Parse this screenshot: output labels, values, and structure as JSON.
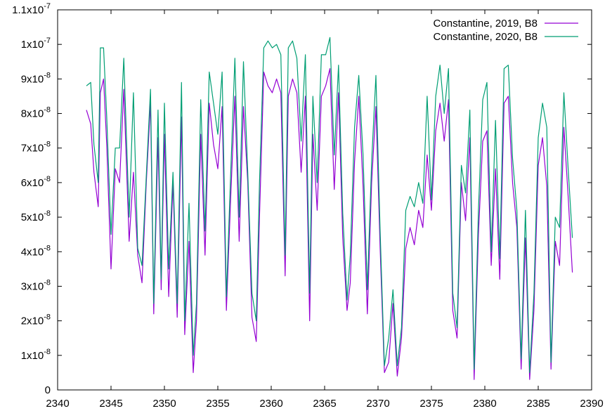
{
  "chart_data": {
    "type": "line",
    "title": "",
    "xlabel": "",
    "ylabel": "",
    "xlim": [
      2340,
      2390
    ],
    "ylim": [
      0,
      1.1e-07
    ],
    "grid": false,
    "legend_position": "top-right",
    "x_ticks": [
      {
        "value": 2340,
        "label": "2340"
      },
      {
        "value": 2345,
        "label": "2345"
      },
      {
        "value": 2350,
        "label": "2350"
      },
      {
        "value": 2355,
        "label": "2355"
      },
      {
        "value": 2360,
        "label": "2360"
      },
      {
        "value": 2365,
        "label": "2365"
      },
      {
        "value": 2370,
        "label": "2370"
      },
      {
        "value": 2375,
        "label": "2375"
      },
      {
        "value": 2380,
        "label": "2380"
      },
      {
        "value": 2385,
        "label": "2385"
      },
      {
        "value": 2390,
        "label": "2390"
      }
    ],
    "y_ticks": [
      {
        "value": 0,
        "mant": "0",
        "exp": ""
      },
      {
        "value": 1e-08,
        "mant": "1x10",
        "exp": "-8"
      },
      {
        "value": 2e-08,
        "mant": "2x10",
        "exp": "-8"
      },
      {
        "value": 3e-08,
        "mant": "3x10",
        "exp": "-8"
      },
      {
        "value": 4e-08,
        "mant": "4x10",
        "exp": "-8"
      },
      {
        "value": 5e-08,
        "mant": "5x10",
        "exp": "-8"
      },
      {
        "value": 6e-08,
        "mant": "6x10",
        "exp": "-8"
      },
      {
        "value": 7e-08,
        "mant": "7x10",
        "exp": "-8"
      },
      {
        "value": 8e-08,
        "mant": "8x10",
        "exp": "-8"
      },
      {
        "value": 9e-08,
        "mant": "9x10",
        "exp": "-8"
      },
      {
        "value": 1e-07,
        "mant": "1x10",
        "exp": "-7"
      },
      {
        "value": 1.1e-07,
        "mant": "1.1x10",
        "exp": "-7"
      }
    ],
    "series": [
      {
        "name": "Constantine, 2019, B8",
        "color": "#9400d3",
        "x": [
          2342.7,
          2343.1,
          2343.4,
          2343.8,
          2344.0,
          2344.3,
          2344.6,
          2345.0,
          2345.4,
          2345.8,
          2346.2,
          2346.7,
          2347.1,
          2347.5,
          2347.9,
          2348.3,
          2348.7,
          2349.0,
          2349.4,
          2349.7,
          2350.0,
          2350.4,
          2350.8,
          2351.2,
          2351.6,
          2351.9,
          2352.3,
          2352.7,
          2353.0,
          2353.4,
          2353.8,
          2354.2,
          2354.6,
          2355.0,
          2355.4,
          2355.8,
          2356.2,
          2356.6,
          2357.0,
          2357.4,
          2357.8,
          2358.2,
          2358.6,
          2358.9,
          2359.3,
          2359.7,
          2360.1,
          2360.5,
          2360.9,
          2361.3,
          2361.6,
          2362.0,
          2362.4,
          2362.8,
          2363.2,
          2363.6,
          2363.9,
          2364.3,
          2364.7,
          2365.1,
          2365.5,
          2365.9,
          2366.3,
          2366.7,
          2367.1,
          2367.4,
          2367.8,
          2368.2,
          2368.6,
          2369.0,
          2369.4,
          2369.8,
          2370.2,
          2370.6,
          2371.0,
          2371.4,
          2371.8,
          2372.2,
          2372.6,
          2373.0,
          2373.4,
          2373.8,
          2374.2,
          2374.6,
          2375.0,
          2375.4,
          2375.8,
          2376.2,
          2376.6,
          2377.0,
          2377.4,
          2377.8,
          2378.2,
          2378.6,
          2379.0,
          2379.4,
          2379.8,
          2380.2,
          2380.6,
          2381.0,
          2381.4,
          2381.8,
          2382.2,
          2382.6,
          2383.0,
          2383.4,
          2383.8,
          2384.2,
          2384.6,
          2385.0,
          2385.4,
          2385.8,
          2386.2,
          2386.6,
          2387.0,
          2387.4,
          2387.8,
          2388.2
        ],
        "y": [
          8.1e-08,
          7.7e-08,
          6.3e-08,
          5.3e-08,
          8.6e-08,
          9e-08,
          7.1e-08,
          3.5e-08,
          6.4e-08,
          6e-08,
          8.7e-08,
          4.3e-08,
          6.3e-08,
          3.9e-08,
          3.1e-08,
          6e-08,
          8.3e-08,
          2.2e-08,
          7.3e-08,
          2.9e-08,
          7.4e-08,
          2.7e-08,
          6e-08,
          2.1e-08,
          7.9e-08,
          1.6e-08,
          4.3e-08,
          5e-09,
          2e-08,
          7.4e-08,
          3.9e-08,
          8.3e-08,
          7.1e-08,
          6.4e-08,
          8.2e-08,
          2.3e-08,
          5.5e-08,
          8.5e-08,
          4.3e-08,
          8.2e-08,
          6e-08,
          2.1e-08,
          1.4e-08,
          5e-08,
          9.2e-08,
          8.8e-08,
          8.6e-08,
          9e-08,
          8.6e-08,
          3.3e-08,
          8.5e-08,
          9e-08,
          8.6e-08,
          6.3e-08,
          8.5e-08,
          2e-08,
          7.4e-08,
          5.2e-08,
          8.5e-08,
          8.8e-08,
          9.3e-08,
          5.8e-08,
          8.6e-08,
          4.4e-08,
          2.3e-08,
          3.1e-08,
          6.6e-08,
          8.5e-08,
          5.9e-08,
          2.2e-08,
          6e-08,
          8.2e-08,
          4.1e-08,
          5e-09,
          8e-09,
          2.5e-08,
          4e-09,
          1.5e-08,
          4.1e-08,
          4.7e-08,
          4.2e-08,
          5.2e-08,
          4.7e-08,
          6.8e-08,
          5.2e-08,
          7.5e-08,
          8.3e-08,
          7.2e-08,
          8.4e-08,
          2.3e-08,
          1.5e-08,
          6e-08,
          4.9e-08,
          7.3e-08,
          3e-09,
          4.5e-08,
          7.2e-08,
          7.5e-08,
          3.6e-08,
          6.4e-08,
          3.2e-08,
          8.3e-08,
          8.5e-08,
          6e-08,
          4.7e-08,
          6e-09,
          4.4e-08,
          3e-09,
          2.3e-08,
          6.5e-08,
          7.3e-08,
          5.9e-08,
          6e-09,
          4.3e-08,
          3.6e-08,
          7.6e-08,
          5.6e-08,
          3.4e-08
        ]
      },
      {
        "name": "Constantine, 2020, B8",
        "color": "#009e73",
        "x": [
          2342.7,
          2343.1,
          2343.4,
          2343.8,
          2344.0,
          2344.3,
          2344.6,
          2345.0,
          2345.4,
          2345.8,
          2346.2,
          2346.7,
          2347.1,
          2347.5,
          2347.9,
          2348.3,
          2348.7,
          2349.0,
          2349.4,
          2349.7,
          2350.0,
          2350.4,
          2350.8,
          2351.2,
          2351.6,
          2351.9,
          2352.3,
          2352.7,
          2353.0,
          2353.4,
          2353.8,
          2354.2,
          2354.6,
          2355.0,
          2355.4,
          2355.8,
          2356.2,
          2356.6,
          2357.0,
          2357.4,
          2357.8,
          2358.2,
          2358.6,
          2358.9,
          2359.3,
          2359.7,
          2360.1,
          2360.5,
          2360.9,
          2361.3,
          2361.6,
          2362.0,
          2362.4,
          2362.8,
          2363.2,
          2363.6,
          2363.9,
          2364.3,
          2364.7,
          2365.1,
          2365.5,
          2365.9,
          2366.3,
          2366.7,
          2367.1,
          2367.4,
          2367.8,
          2368.2,
          2368.6,
          2369.0,
          2369.4,
          2369.8,
          2370.2,
          2370.6,
          2371.0,
          2371.4,
          2371.8,
          2372.2,
          2372.6,
          2373.0,
          2373.4,
          2373.8,
          2374.2,
          2374.6,
          2375.0,
          2375.4,
          2375.8,
          2376.2,
          2376.6,
          2377.0,
          2377.4,
          2377.8,
          2378.2,
          2378.6,
          2379.0,
          2379.4,
          2379.8,
          2380.2,
          2380.6,
          2381.0,
          2381.4,
          2381.8,
          2382.2,
          2382.6,
          2383.0,
          2383.4,
          2383.8,
          2384.2,
          2384.6,
          2385.0,
          2385.4,
          2385.8,
          2386.2,
          2386.6,
          2387.0,
          2387.4,
          2387.8,
          2388.2
        ],
        "y": [
          8.8e-08,
          8.9e-08,
          7.1e-08,
          6e-08,
          9.9e-08,
          9.9e-08,
          7.9e-08,
          4.5e-08,
          7e-08,
          7e-08,
          9.6e-08,
          5e-08,
          8.6e-08,
          4.1e-08,
          3.6e-08,
          6.2e-08,
          8.7e-08,
          2.5e-08,
          8.1e-08,
          3.2e-08,
          8.3e-08,
          3.5e-08,
          6.3e-08,
          2.5e-08,
          8.9e-08,
          2e-08,
          5.4e-08,
          1e-08,
          2.5e-08,
          8.4e-08,
          4.6e-08,
          9.2e-08,
          8.3e-08,
          7.4e-08,
          9.2e-08,
          2.7e-08,
          6.2e-08,
          9.6e-08,
          5e-08,
          9.5e-08,
          6.3e-08,
          2.8e-08,
          2e-08,
          6e-08,
          9.9e-08,
          1.01e-07,
          9.9e-08,
          1e-07,
          9.7e-08,
          3.9e-08,
          9.9e-08,
          1.01e-07,
          9.6e-08,
          7.2e-08,
          9.7e-08,
          2.8e-08,
          8.5e-08,
          6e-08,
          9.7e-08,
          9.7e-08,
          1.02e-07,
          6.8e-08,
          9.4e-08,
          5.1e-08,
          2.6e-08,
          3.9e-08,
          7.6e-08,
          9.1e-08,
          6.8e-08,
          2.9e-08,
          6.6e-08,
          9.1e-08,
          4.6e-08,
          7e-09,
          1.5e-08,
          2.9e-08,
          7e-09,
          1.8e-08,
          5.2e-08,
          5.6e-08,
          5.3e-08,
          6e-08,
          5.4e-08,
          8.5e-08,
          5.5e-08,
          8.5e-08,
          9.4e-08,
          8e-08,
          9.3e-08,
          2.8e-08,
          1.8e-08,
          6.5e-08,
          5.7e-08,
          8.1e-08,
          6e-09,
          5.2e-08,
          8.4e-08,
          8.9e-08,
          4e-08,
          7.8e-08,
          3.8e-08,
          9.3e-08,
          9.4e-08,
          6.7e-08,
          5.2e-08,
          9e-09,
          5.2e-08,
          5e-09,
          2.8e-08,
          7.3e-08,
          8.3e-08,
          7.6e-08,
          8e-09,
          5e-08,
          4.7e-08,
          8.6e-08,
          6.4e-08,
          4.4e-08
        ]
      }
    ]
  }
}
